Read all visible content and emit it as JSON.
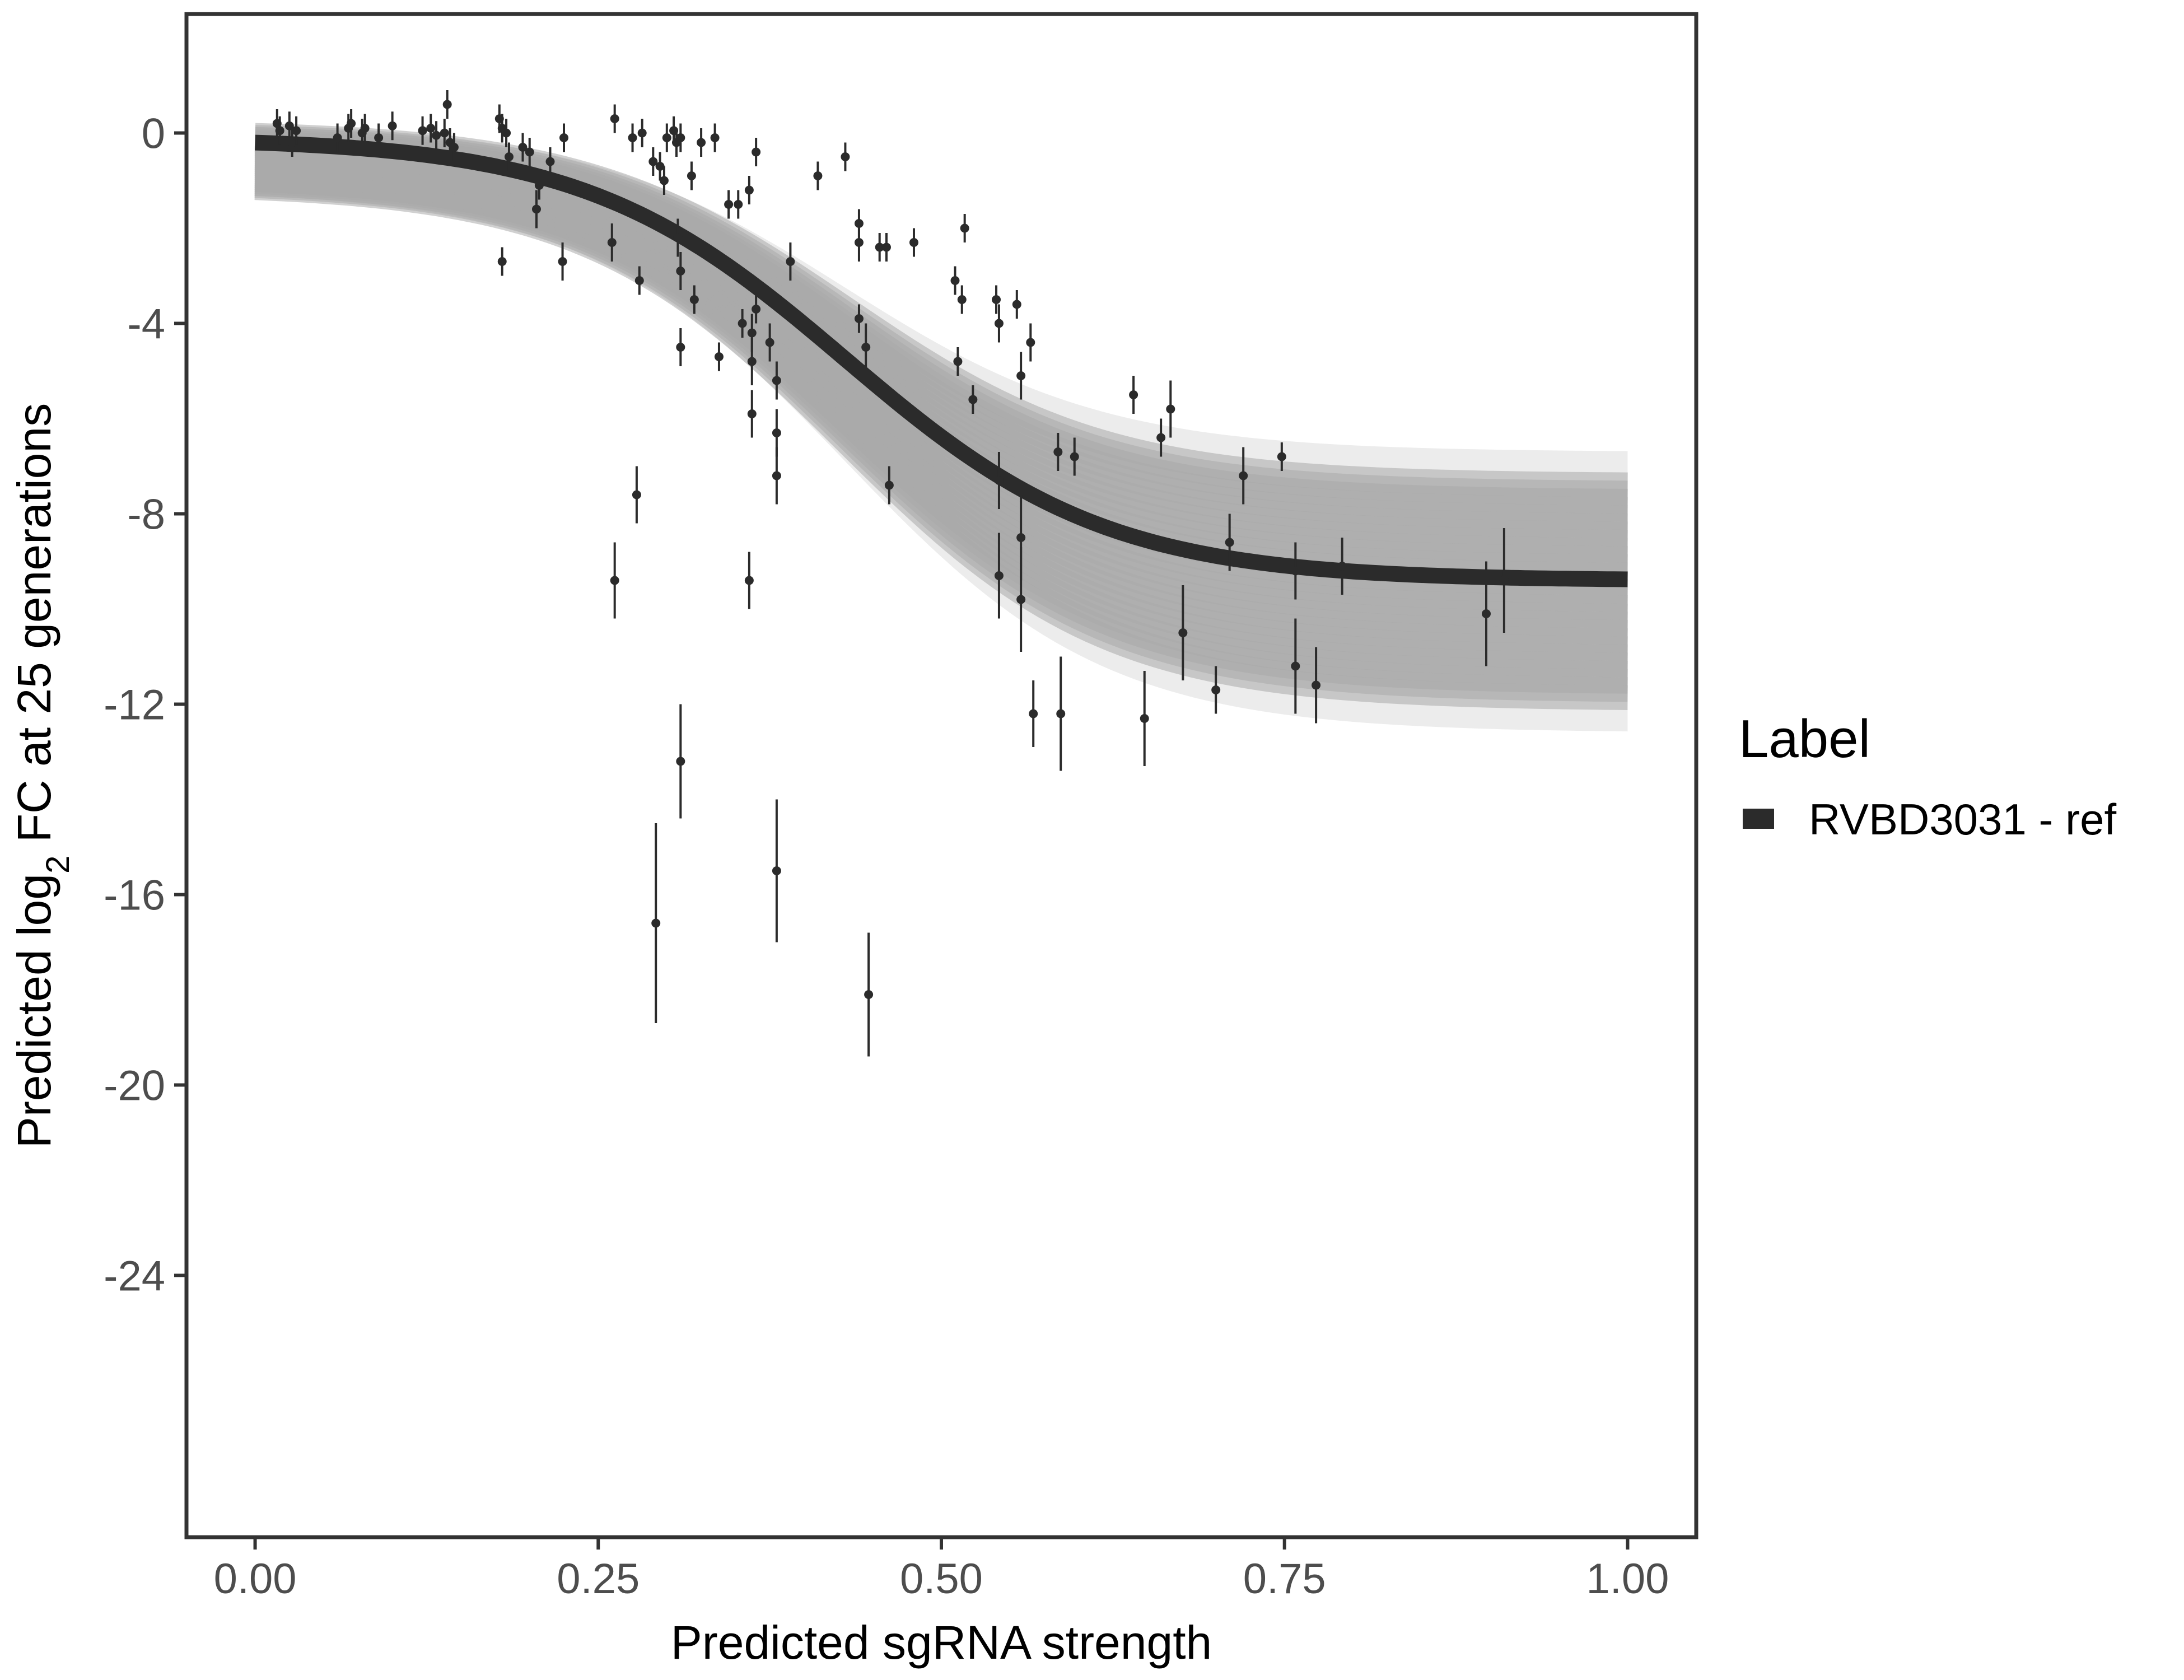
{
  "chart_data": {
    "type": "scatter",
    "title": "",
    "xlabel": "Predicted sgRNA strength",
    "ylabel_parts": {
      "pre": "Predicted  log",
      "sub": "2",
      "post": " FC at 25 generations"
    },
    "xlim": [
      -0.05,
      1.05
    ],
    "ylim": [
      -29.5,
      2.5
    ],
    "x_ticks": [
      0.0,
      0.25,
      0.5,
      0.75,
      1.0
    ],
    "x_tick_labels": [
      "0.00",
      "0.25",
      "0.50",
      "0.75",
      "1.00"
    ],
    "y_ticks": [
      0,
      -4,
      -8,
      -12,
      -16,
      -20,
      -24
    ],
    "y_tick_labels": [
      "0",
      "-4",
      "-8",
      "-12",
      "-16",
      "-20",
      "-24"
    ],
    "grid": false,
    "legend": {
      "title": "Label",
      "position": "right",
      "entries": [
        {
          "label": "RVBD3031 - ref",
          "color": "#2b2b2b"
        }
      ]
    },
    "colors": {
      "points": "#2b2b2b",
      "fit": "#2b2b2b",
      "band": "#a9a9a9",
      "border": "#333333"
    },
    "fit_curve": {
      "name": "RVBD3031 - ref",
      "model": "logistic",
      "upper": -0.1,
      "lower": -9.4,
      "midpoint": 0.43,
      "slope": 10.5
    },
    "posterior_band": {
      "lower_at_x0": -1.2,
      "lower_at_x1": -12.6,
      "upper_at_x0": 0.2,
      "upper_at_x1": -6.7
    },
    "points": [
      {
        "x": 0.016,
        "y": 0.2,
        "err": 0.3
      },
      {
        "x": 0.018,
        "y": 0.05,
        "err": 0.3
      },
      {
        "x": 0.025,
        "y": 0.15,
        "err": 0.3
      },
      {
        "x": 0.027,
        "y": -0.2,
        "err": 0.3
      },
      {
        "x": 0.03,
        "y": 0.05,
        "err": 0.3
      },
      {
        "x": 0.06,
        "y": -0.1,
        "err": 0.3
      },
      {
        "x": 0.068,
        "y": 0.1,
        "err": 0.3
      },
      {
        "x": 0.07,
        "y": 0.2,
        "err": 0.3
      },
      {
        "x": 0.078,
        "y": 0.0,
        "err": 0.3
      },
      {
        "x": 0.08,
        "y": 0.1,
        "err": 0.3
      },
      {
        "x": 0.09,
        "y": -0.1,
        "err": 0.3
      },
      {
        "x": 0.1,
        "y": 0.15,
        "err": 0.3
      },
      {
        "x": 0.122,
        "y": 0.05,
        "err": 0.3
      },
      {
        "x": 0.128,
        "y": 0.1,
        "err": 0.3
      },
      {
        "x": 0.132,
        "y": -0.05,
        "err": 0.3
      },
      {
        "x": 0.138,
        "y": 0.0,
        "err": 0.3
      },
      {
        "x": 0.14,
        "y": 0.6,
        "err": 0.3
      },
      {
        "x": 0.142,
        "y": -0.2,
        "err": 0.3
      },
      {
        "x": 0.145,
        "y": -0.3,
        "err": 0.3
      },
      {
        "x": 0.178,
        "y": 0.3,
        "err": 0.3
      },
      {
        "x": 0.18,
        "y": 0.1,
        "err": 0.3
      },
      {
        "x": 0.183,
        "y": 0.0,
        "err": 0.3
      },
      {
        "x": 0.185,
        "y": -0.5,
        "err": 0.3
      },
      {
        "x": 0.18,
        "y": -2.7,
        "err": 0.3
      },
      {
        "x": 0.195,
        "y": -0.3,
        "err": 0.3
      },
      {
        "x": 0.2,
        "y": -0.4,
        "err": 0.3
      },
      {
        "x": 0.205,
        "y": -1.6,
        "err": 0.4
      },
      {
        "x": 0.207,
        "y": -1.1,
        "err": 0.3
      },
      {
        "x": 0.215,
        "y": -0.6,
        "err": 0.3
      },
      {
        "x": 0.224,
        "y": -2.7,
        "err": 0.4
      },
      {
        "x": 0.225,
        "y": -0.1,
        "err": 0.3
      },
      {
        "x": 0.26,
        "y": -2.3,
        "err": 0.4
      },
      {
        "x": 0.262,
        "y": 0.3,
        "err": 0.3
      },
      {
        "x": 0.275,
        "y": -0.1,
        "err": 0.3
      },
      {
        "x": 0.28,
        "y": -3.1,
        "err": 0.3
      },
      {
        "x": 0.282,
        "y": 0.0,
        "err": 0.3
      },
      {
        "x": 0.29,
        "y": -0.6,
        "err": 0.3
      },
      {
        "x": 0.295,
        "y": -0.7,
        "err": 0.3
      },
      {
        "x": 0.298,
        "y": -1.0,
        "err": 0.3
      },
      {
        "x": 0.3,
        "y": -0.1,
        "err": 0.3
      },
      {
        "x": 0.305,
        "y": 0.05,
        "err": 0.3
      },
      {
        "x": 0.307,
        "y": -0.2,
        "err": 0.3
      },
      {
        "x": 0.31,
        "y": -0.1,
        "err": 0.3
      },
      {
        "x": 0.308,
        "y": -2.2,
        "err": 0.4
      },
      {
        "x": 0.31,
        "y": -2.9,
        "err": 0.4
      },
      {
        "x": 0.31,
        "y": -4.5,
        "err": 0.4
      },
      {
        "x": 0.318,
        "y": -0.9,
        "err": 0.3
      },
      {
        "x": 0.32,
        "y": -3.5,
        "err": 0.3
      },
      {
        "x": 0.325,
        "y": -0.2,
        "err": 0.3
      },
      {
        "x": 0.335,
        "y": -0.1,
        "err": 0.3
      },
      {
        "x": 0.338,
        "y": -4.7,
        "err": 0.3
      },
      {
        "x": 0.345,
        "y": -1.5,
        "err": 0.3
      },
      {
        "x": 0.352,
        "y": -1.5,
        "err": 0.3
      },
      {
        "x": 0.355,
        "y": -4.0,
        "err": 0.3
      },
      {
        "x": 0.36,
        "y": -1.2,
        "err": 0.3
      },
      {
        "x": 0.362,
        "y": -4.2,
        "err": 0.4
      },
      {
        "x": 0.362,
        "y": -4.8,
        "err": 0.5
      },
      {
        "x": 0.362,
        "y": -5.9,
        "err": 0.5
      },
      {
        "x": 0.365,
        "y": -0.4,
        "err": 0.3
      },
      {
        "x": 0.365,
        "y": -3.7,
        "err": 0.3
      },
      {
        "x": 0.375,
        "y": -4.4,
        "err": 0.4
      },
      {
        "x": 0.38,
        "y": -5.2,
        "err": 0.4
      },
      {
        "x": 0.38,
        "y": -6.3,
        "err": 0.5
      },
      {
        "x": 0.38,
        "y": -7.2,
        "err": 0.6
      },
      {
        "x": 0.39,
        "y": -2.7,
        "err": 0.4
      },
      {
        "x": 0.41,
        "y": -0.9,
        "err": 0.3
      },
      {
        "x": 0.43,
        "y": -0.5,
        "err": 0.3
      },
      {
        "x": 0.44,
        "y": -1.9,
        "err": 0.3
      },
      {
        "x": 0.44,
        "y": -2.3,
        "err": 0.4
      },
      {
        "x": 0.44,
        "y": -3.9,
        "err": 0.3
      },
      {
        "x": 0.445,
        "y": -4.5,
        "err": 0.5
      },
      {
        "x": 0.455,
        "y": -2.4,
        "err": 0.3
      },
      {
        "x": 0.46,
        "y": -2.4,
        "err": 0.3
      },
      {
        "x": 0.462,
        "y": -7.4,
        "err": 0.4
      },
      {
        "x": 0.48,
        "y": -2.3,
        "err": 0.3
      },
      {
        "x": 0.51,
        "y": -3.1,
        "err": 0.3
      },
      {
        "x": 0.512,
        "y": -4.8,
        "err": 0.3
      },
      {
        "x": 0.515,
        "y": -3.5,
        "err": 0.3
      },
      {
        "x": 0.517,
        "y": -2.0,
        "err": 0.3
      },
      {
        "x": 0.523,
        "y": -5.6,
        "err": 0.3
      },
      {
        "x": 0.54,
        "y": -3.5,
        "err": 0.3
      },
      {
        "x": 0.542,
        "y": -4.0,
        "err": 0.4
      },
      {
        "x": 0.542,
        "y": -7.3,
        "err": 0.6
      },
      {
        "x": 0.542,
        "y": -9.3,
        "err": 0.9
      },
      {
        "x": 0.555,
        "y": -3.6,
        "err": 0.3
      },
      {
        "x": 0.558,
        "y": -5.1,
        "err": 0.5
      },
      {
        "x": 0.558,
        "y": -8.5,
        "err": 0.9
      },
      {
        "x": 0.558,
        "y": -9.8,
        "err": 1.1
      },
      {
        "x": 0.565,
        "y": -4.4,
        "err": 0.4
      },
      {
        "x": 0.567,
        "y": -12.2,
        "err": 0.7
      },
      {
        "x": 0.585,
        "y": -6.7,
        "err": 0.4
      },
      {
        "x": 0.587,
        "y": -12.2,
        "err": 1.2
      },
      {
        "x": 0.597,
        "y": -6.8,
        "err": 0.4
      },
      {
        "x": 0.64,
        "y": -5.5,
        "err": 0.4
      },
      {
        "x": 0.648,
        "y": -12.3,
        "err": 1.0
      },
      {
        "x": 0.66,
        "y": -6.4,
        "err": 0.4
      },
      {
        "x": 0.667,
        "y": -5.8,
        "err": 0.6
      },
      {
        "x": 0.676,
        "y": -10.5,
        "err": 1.0
      },
      {
        "x": 0.7,
        "y": -11.7,
        "err": 0.5
      },
      {
        "x": 0.71,
        "y": -8.6,
        "err": 0.6
      },
      {
        "x": 0.72,
        "y": -7.2,
        "err": 0.6
      },
      {
        "x": 0.748,
        "y": -6.8,
        "err": 0.3
      },
      {
        "x": 0.758,
        "y": -9.2,
        "err": 0.6
      },
      {
        "x": 0.758,
        "y": -11.2,
        "err": 1.0
      },
      {
        "x": 0.773,
        "y": -11.6,
        "err": 0.8
      },
      {
        "x": 0.792,
        "y": -9.1,
        "err": 0.6
      },
      {
        "x": 0.897,
        "y": -10.1,
        "err": 1.1
      },
      {
        "x": 0.91,
        "y": -9.4,
        "err": 1.1
      },
      {
        "x": 0.262,
        "y": -9.4,
        "err": 0.8
      },
      {
        "x": 0.278,
        "y": -7.6,
        "err": 0.6
      },
      {
        "x": 0.292,
        "y": -16.6,
        "err": 2.1
      },
      {
        "x": 0.31,
        "y": -13.2,
        "err": 1.2
      },
      {
        "x": 0.36,
        "y": -9.4,
        "err": 0.6
      },
      {
        "x": 0.38,
        "y": -15.5,
        "err": 1.5
      },
      {
        "x": 0.447,
        "y": -18.1,
        "err": 1.3
      }
    ]
  }
}
